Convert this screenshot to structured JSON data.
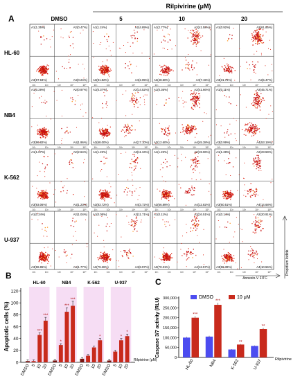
{
  "colors": {
    "flow_dots": "#e03020",
    "flow_dots_dense": "#c81010",
    "flow_hot": "#ff9a2a",
    "dmso_bar": "#4c4cf0",
    "treated_bar": "#c82a1c",
    "highlight_band": "#f3d2f0"
  },
  "panel_a": {
    "label": "A",
    "treatment_title": "Rilpivirine (μM)",
    "column_headers": [
      "DMSO",
      "5",
      "10",
      "20"
    ],
    "row_labels": [
      "HL-60",
      "NB4",
      "K-562",
      "U-937"
    ],
    "quadrant_labels": [
      [
        [
          "A1(1.35%)",
          "A2(0.47%)",
          "A3(97.94%)",
          "A4(0.24%)"
        ],
        [
          "A1(1.24%)",
          "A2(4.89%)",
          "A3(91.82%)",
          "A4(2.05%)"
        ],
        [
          "A1(2.77%)",
          "A2(41.58%)",
          "A3(48.50%)",
          "A4(7.15%)"
        ],
        [
          "A1(0.92%)",
          "A2(61.85%)",
          "A3(31.76%)",
          "A4(5.47%)"
        ]
      ],
      [
        [
          "A1(0.29%)",
          "A2(0.97%)",
          "A3(96.82%)",
          "A4(1.96%)"
        ],
        [
          "A1(0.37%)",
          "A2(14.52%)",
          "A3(68.00%)",
          "A4(17.10%)"
        ],
        [
          "A1(0.36%)",
          "A2(41.66%)",
          "A3(12.60%)",
          "A4(45.38%)"
        ],
        [
          "A1(0.11%)",
          "A2(45.71%)",
          "A3(0.99%)",
          "A4(53.19%)"
        ]
      ],
      [
        [
          "A1(1.07%)",
          "A2(2.64%)",
          "A3(93.06%)",
          "A4(1.23%)"
        ],
        [
          "A1(1.22%)",
          "A2(11.34%)",
          "A3(83.72%)",
          "A4(3.72%)"
        ],
        [
          "A1(1.22%)",
          "A2(19.06%)",
          "A3(66.89%)",
          "A4(12.82%)"
        ],
        [
          "A1(1.28%)",
          "A2(23.59%)",
          "A3(60.51%)",
          "A4(14.68%)"
        ]
      ],
      [
        [
          "A1(0.24%)",
          "A2(1.04%)",
          "A3(96.95%)",
          "A4(1.77%)"
        ],
        [
          "A1(0.05%)",
          "A2(11.71%)",
          "A3(79.26%)",
          "A4(8.97%)"
        ],
        [
          "A1(0.11%)",
          "A2(16.51%)",
          "A3(70.31%)",
          "A4(12.57%)"
        ],
        [
          "A1(0.14%)",
          "A2(20.91%)",
          "A3(68.39%)",
          "A4(10.56%)"
        ]
      ]
    ],
    "axis_ticks": [
      "10¹",
      "10²",
      "10³",
      "10⁴",
      "10⁵"
    ],
    "yaxis_label": "Propidium Iodide",
    "xaxis_label": "Annexin-V FITC"
  },
  "chart_data": [
    {
      "panel": "B",
      "type": "bar",
      "ylabel": "Apoptotic cells (%)",
      "ylim": [
        0,
        120
      ],
      "yticks": [
        0,
        20,
        40,
        60,
        80,
        100,
        120
      ],
      "legend_title": "Rilpivirine (μM)",
      "categories": [
        "DMSO",
        "5",
        "10",
        "20"
      ],
      "groups": [
        {
          "name": "HL-60",
          "values": [
            2,
            46,
            70
          ],
          "dmso": 2,
          "significance": [
            "",
            "***",
            "***"
          ]
        },
        {
          "name": "NB4",
          "values": [
            29,
            85,
            95
          ],
          "dmso": 3,
          "significance": [
            "*",
            "***",
            "***"
          ]
        },
        {
          "name": "K-562",
          "values": [
            11,
            25,
            37
          ],
          "dmso": 6,
          "significance": [
            "",
            "",
            "*"
          ]
        },
        {
          "name": "U-937",
          "values": [
            18,
            37,
            44
          ],
          "dmso": 3,
          "significance": [
            "",
            "*",
            "*"
          ]
        }
      ]
    },
    {
      "panel": "C",
      "type": "bar",
      "ylabel": "Caspase 3/7 activity (RLU)",
      "ylim": [
        0,
        300000
      ],
      "yticks": [
        "0",
        "50,000",
        "100,000",
        "150,000",
        "200,000",
        "250,000",
        "300,000"
      ],
      "categories": [
        "HL-60",
        "NB4",
        "K-562",
        "U-937"
      ],
      "series": [
        {
          "name": "DMSO",
          "values": [
            100000,
            105000,
            40000,
            58000
          ]
        },
        {
          "name": "10 μM",
          "values": [
            200000,
            265000,
            65000,
            143000
          ],
          "significance": [
            "***",
            "***",
            "**",
            "**"
          ]
        }
      ],
      "xlabel": "Rilpivirine"
    }
  ]
}
